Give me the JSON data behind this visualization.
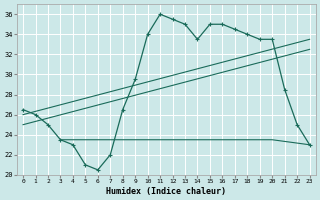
{
  "xlabel": "Humidex (Indice chaleur)",
  "bg_color": "#cce8e8",
  "grid_color": "#ffffff",
  "line_color": "#1a6b5a",
  "xlim": [
    -0.5,
    23.5
  ],
  "ylim": [
    20,
    37
  ],
  "yticks": [
    20,
    22,
    24,
    26,
    28,
    30,
    32,
    34,
    36
  ],
  "xticks": [
    0,
    1,
    2,
    3,
    4,
    5,
    6,
    7,
    8,
    9,
    10,
    11,
    12,
    13,
    14,
    15,
    16,
    17,
    18,
    19,
    20,
    21,
    22,
    23
  ],
  "line1_x": [
    0,
    1,
    2,
    3,
    4,
    5,
    6,
    7,
    8,
    9,
    10,
    11,
    12,
    13,
    14,
    15,
    16,
    17,
    18,
    19,
    20,
    21,
    22,
    23
  ],
  "line1_y": [
    26.5,
    26.0,
    25.0,
    23.5,
    23.0,
    21.0,
    20.5,
    22.0,
    26.5,
    29.5,
    34.0,
    36.0,
    35.5,
    35.0,
    33.5,
    35.0,
    35.0,
    34.5,
    34.0,
    33.5,
    33.5,
    28.5,
    25.0,
    23.0
  ],
  "line2_x": [
    0,
    23
  ],
  "line2_y": [
    26.0,
    33.5
  ],
  "line3_x": [
    0,
    23
  ],
  "line3_y": [
    25.0,
    32.5
  ],
  "line4_x": [
    3,
    20,
    23
  ],
  "line4_y": [
    23.5,
    23.5,
    23.0
  ]
}
